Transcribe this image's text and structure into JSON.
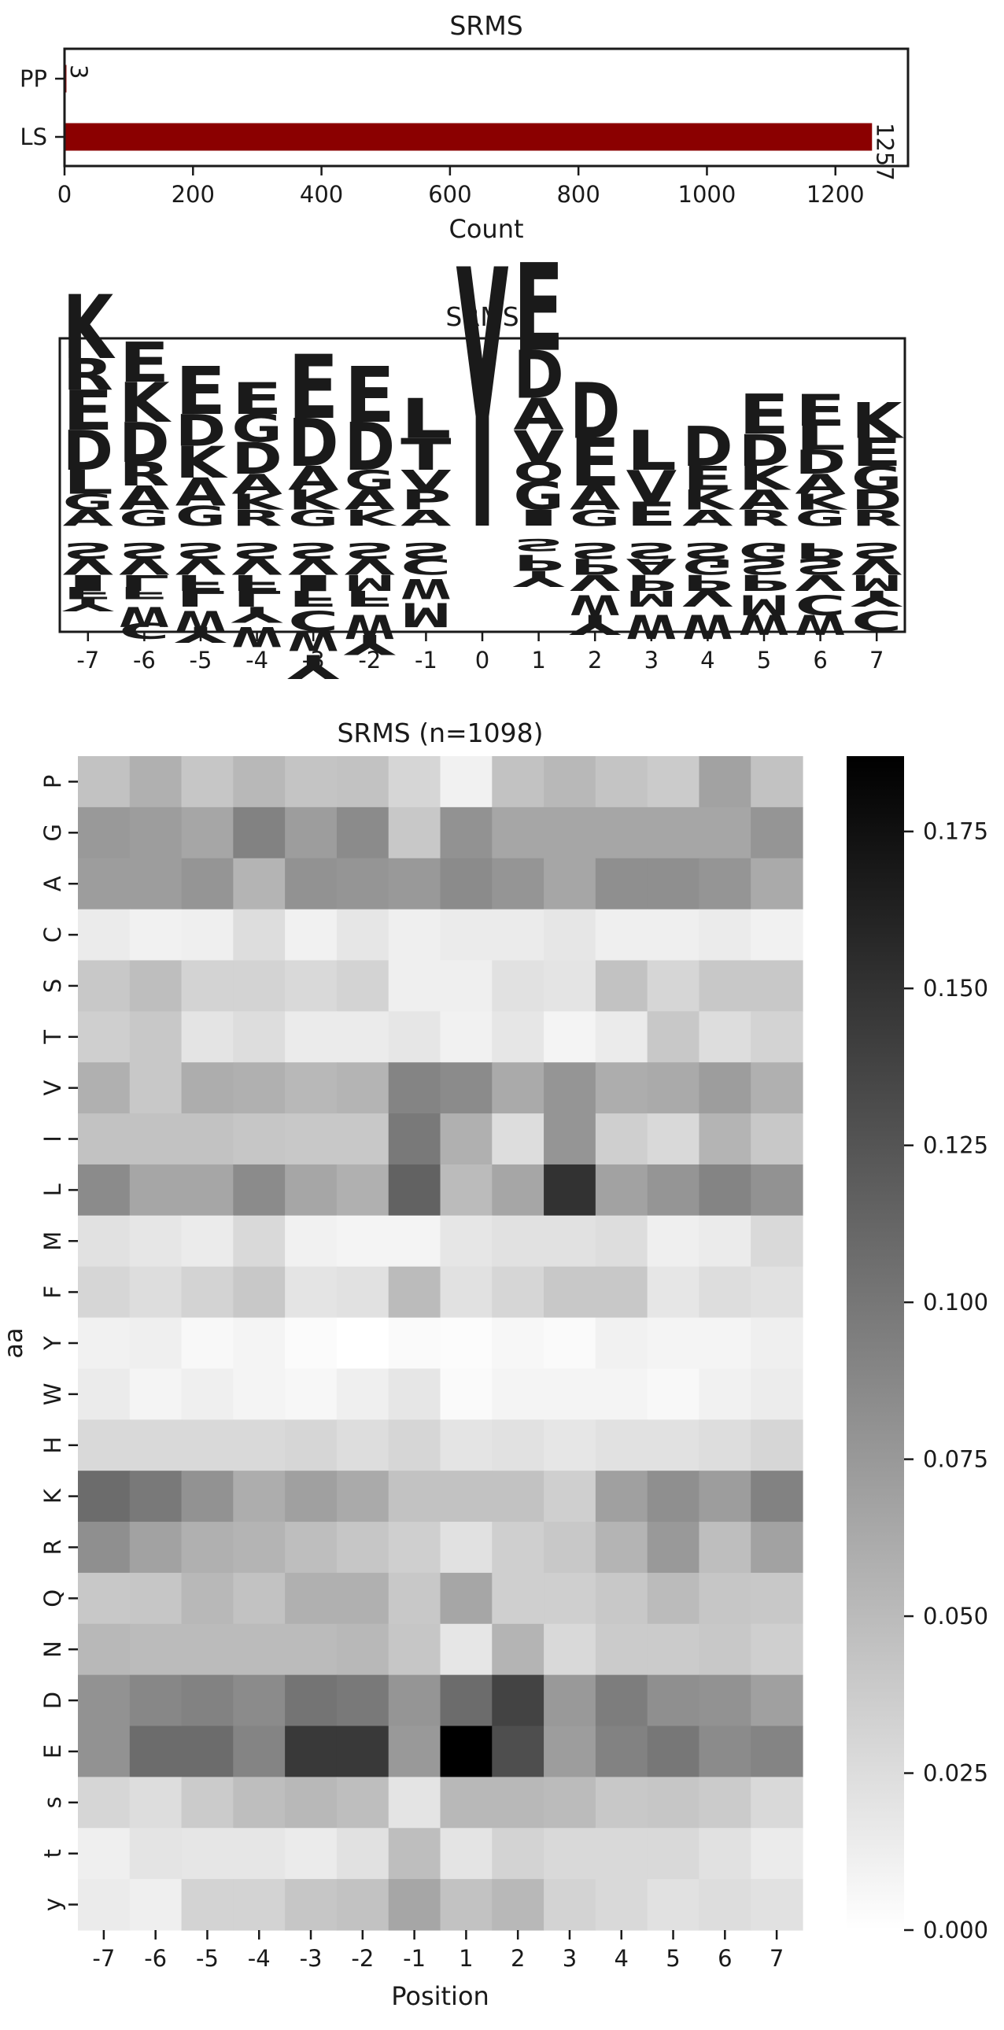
{
  "chart_data": [
    {
      "type": "bar",
      "orientation": "horizontal",
      "title": "SRMS",
      "categories": [
        "PP",
        "LS"
      ],
      "values": [
        3,
        1257
      ],
      "value_labels": [
        "3",
        "1257"
      ],
      "xlabel": "Count",
      "ylabel": "",
      "xlim": [
        0,
        1313
      ],
      "xticks": [
        0,
        200,
        400,
        600,
        800,
        1000,
        1200
      ],
      "color": "#8b0000"
    },
    {
      "type": "sequence_logo",
      "title": "SRMS",
      "positions": [
        -7,
        -6,
        -5,
        -4,
        -3,
        -2,
        -1,
        0,
        1,
        2,
        3,
        4,
        5,
        6,
        7
      ],
      "position_labels": [
        "-7",
        "-6",
        "-5",
        "-4",
        "-3",
        "-2",
        "-1",
        "0",
        "1",
        "2",
        "3",
        "4",
        "5",
        "6",
        "7"
      ],
      "colors": {
        "acidic": "#dc143c",
        "basic": "#0000cd",
        "hydrophobic": "#d4a017",
        "polar": "#008000",
        "aromatic": "#8b3a0f",
        "phospho": "#8b008b",
        "other": "#000000"
      },
      "columns": [
        {
          "pos": -7,
          "up": [
            [
              "K",
              0.16
            ],
            [
              "R",
              0.08
            ],
            [
              "E",
              0.1
            ],
            [
              "D",
              0.1
            ],
            [
              "L",
              0.06
            ],
            [
              "G",
              0.04
            ],
            [
              "A",
              0.04
            ]
          ],
          "down": [
            [
              "S",
              0.04
            ],
            [
              "V",
              0.04
            ],
            [
              "I",
              0.04
            ],
            [
              "F",
              0.03
            ],
            [
              "Y",
              0.03
            ]
          ]
        },
        {
          "pos": -6,
          "up": [
            [
              "E",
              0.1
            ],
            [
              "K",
              0.1
            ],
            [
              "D",
              0.1
            ],
            [
              "R",
              0.06
            ],
            [
              "A",
              0.06
            ],
            [
              "G",
              0.04
            ]
          ],
          "down": [
            [
              "S",
              0.04
            ],
            [
              "V",
              0.04
            ],
            [
              "L",
              0.04
            ],
            [
              "F",
              0.03
            ],
            [
              "W",
              0.05
            ],
            [
              "C",
              0.04
            ]
          ]
        },
        {
          "pos": -5,
          "up": [
            [
              "E",
              0.12
            ],
            [
              "D",
              0.08
            ],
            [
              "K",
              0.08
            ],
            [
              "A",
              0.07
            ],
            [
              "G",
              0.05
            ]
          ],
          "down": [
            [
              "S",
              0.04
            ],
            [
              "V",
              0.04
            ],
            [
              "F",
              0.04
            ],
            [
              "L",
              0.04
            ],
            [
              "W",
              0.05
            ],
            [
              "Y",
              0.04
            ]
          ]
        },
        {
          "pos": -4,
          "up": [
            [
              "E",
              0.08
            ],
            [
              "G",
              0.07
            ],
            [
              "D",
              0.08
            ],
            [
              "A",
              0.05
            ],
            [
              "K",
              0.04
            ],
            [
              "R",
              0.04
            ]
          ],
          "down": [
            [
              "S",
              0.04
            ],
            [
              "V",
              0.04
            ],
            [
              "F",
              0.04
            ],
            [
              "L",
              0.04
            ],
            [
              "Y",
              0.04
            ],
            [
              "W",
              0.05
            ]
          ]
        },
        {
          "pos": -3,
          "up": [
            [
              "E",
              0.16
            ],
            [
              "D",
              0.12
            ],
            [
              "A",
              0.06
            ],
            [
              "K",
              0.05
            ],
            [
              "G",
              0.04
            ]
          ],
          "down": [
            [
              "S",
              0.04
            ],
            [
              "V",
              0.04
            ],
            [
              "I",
              0.04
            ],
            [
              "F",
              0.04
            ],
            [
              "C",
              0.05
            ],
            [
              "W",
              0.05
            ],
            [
              "Y",
              0.06
            ]
          ]
        },
        {
          "pos": -2,
          "up": [
            [
              "E",
              0.14
            ],
            [
              "D",
              0.12
            ],
            [
              "G",
              0.05
            ],
            [
              "A",
              0.05
            ],
            [
              "K",
              0.04
            ]
          ],
          "down": [
            [
              "S",
              0.04
            ],
            [
              "V",
              0.04
            ],
            [
              "M",
              0.04
            ],
            [
              "F",
              0.04
            ],
            [
              "W",
              0.06
            ],
            [
              "Y",
              0.05
            ]
          ]
        },
        {
          "pos": -1,
          "up": [
            [
              "L",
              0.1
            ],
            [
              "T",
              0.08
            ],
            [
              "V",
              0.05
            ],
            [
              "P",
              0.05
            ],
            [
              "A",
              0.04
            ]
          ],
          "down": [
            [
              "S",
              0.04
            ],
            [
              "C",
              0.04
            ],
            [
              "W",
              0.05
            ],
            [
              "M",
              0.06
            ]
          ]
        },
        {
          "pos": 0,
          "up": [
            [
              "Y",
              0.65
            ]
          ],
          "down": []
        },
        {
          "pos": 1,
          "up": [
            [
              "E",
              0.22
            ],
            [
              "D",
              0.12
            ],
            [
              "A",
              0.08
            ],
            [
              "V",
              0.08
            ],
            [
              "Q",
              0.05
            ],
            [
              "G",
              0.07
            ],
            [
              "I",
              0.04
            ]
          ],
          "down": [
            [
              "S",
              0.03
            ],
            [
              "P",
              0.04
            ],
            [
              "Y",
              0.04
            ]
          ]
        },
        {
          "pos": 2,
          "up": [
            [
              "D",
              0.14
            ],
            [
              "E",
              0.12
            ],
            [
              "A",
              0.06
            ],
            [
              "G",
              0.04
            ]
          ],
          "down": [
            [
              "S",
              0.04
            ],
            [
              "P",
              0.04
            ],
            [
              "V",
              0.04
            ],
            [
              "W",
              0.05
            ],
            [
              "Y",
              0.05
            ]
          ]
        },
        {
          "pos": 3,
          "up": [
            [
              "L",
              0.1
            ],
            [
              "V",
              0.08
            ],
            [
              "E",
              0.06
            ]
          ],
          "down": [
            [
              "S",
              0.04
            ],
            [
              "A",
              0.04
            ],
            [
              "P",
              0.04
            ],
            [
              "M",
              0.04
            ],
            [
              "W",
              0.06
            ]
          ]
        },
        {
          "pos": 4,
          "up": [
            [
              "D",
              0.1
            ],
            [
              "E",
              0.06
            ],
            [
              "K",
              0.05
            ],
            [
              "A",
              0.04
            ]
          ],
          "down": [
            [
              "S",
              0.04
            ],
            [
              "G",
              0.04
            ],
            [
              "P",
              0.04
            ],
            [
              "V",
              0.04
            ],
            [
              "W",
              0.06
            ]
          ]
        },
        {
          "pos": 5,
          "up": [
            [
              "E",
              0.1
            ],
            [
              "D",
              0.08
            ],
            [
              "K",
              0.06
            ],
            [
              "A",
              0.05
            ],
            [
              "R",
              0.04
            ]
          ],
          "down": [
            [
              "G",
              0.04
            ],
            [
              "S",
              0.04
            ],
            [
              "P",
              0.04
            ],
            [
              "M",
              0.05
            ],
            [
              "W",
              0.05
            ]
          ]
        },
        {
          "pos": 6,
          "up": [
            [
              "E",
              0.08
            ],
            [
              "L",
              0.06
            ],
            [
              "D",
              0.06
            ],
            [
              "A",
              0.05
            ],
            [
              "K",
              0.04
            ],
            [
              "G",
              0.04
            ]
          ],
          "down": [
            [
              "P",
              0.04
            ],
            [
              "S",
              0.04
            ],
            [
              "V",
              0.04
            ],
            [
              "C",
              0.05
            ],
            [
              "W",
              0.05
            ]
          ]
        },
        {
          "pos": 7,
          "up": [
            [
              "K",
              0.09
            ],
            [
              "E",
              0.07
            ],
            [
              "G",
              0.06
            ],
            [
              "D",
              0.05
            ],
            [
              "R",
              0.04
            ]
          ],
          "down": [
            [
              "S",
              0.04
            ],
            [
              "V",
              0.04
            ],
            [
              "M",
              0.04
            ],
            [
              "Y",
              0.04
            ],
            [
              "C",
              0.05
            ]
          ]
        }
      ]
    },
    {
      "type": "heatmap",
      "title": "SRMS (n=1098)",
      "xlabel": "Position",
      "ylabel": "aa",
      "x": [
        "-7",
        "-6",
        "-5",
        "-4",
        "-3",
        "-2",
        "-1",
        "1",
        "2",
        "3",
        "4",
        "5",
        "6",
        "7"
      ],
      "y": [
        "P",
        "G",
        "A",
        "C",
        "S",
        "T",
        "V",
        "I",
        "L",
        "M",
        "F",
        "Y",
        "W",
        "H",
        "K",
        "R",
        "Q",
        "N",
        "D",
        "E",
        "s",
        "t",
        "y"
      ],
      "vmin": 0,
      "vmax": 0.187,
      "colorbar_ticks": [
        "0.000",
        "0.025",
        "0.050",
        "0.075",
        "0.100",
        "0.125",
        "0.150",
        "0.175"
      ],
      "colorbar_tick_values": [
        0,
        0.025,
        0.05,
        0.075,
        0.1,
        0.125,
        0.15,
        0.175
      ],
      "values": [
        [
          0.045,
          0.058,
          0.042,
          0.052,
          0.043,
          0.045,
          0.03,
          0.01,
          0.045,
          0.052,
          0.043,
          0.038,
          0.068,
          0.045
        ],
        [
          0.075,
          0.072,
          0.065,
          0.092,
          0.072,
          0.085,
          0.04,
          0.08,
          0.065,
          0.065,
          0.065,
          0.065,
          0.065,
          0.078
        ],
        [
          0.072,
          0.072,
          0.078,
          0.055,
          0.08,
          0.078,
          0.075,
          0.085,
          0.078,
          0.065,
          0.082,
          0.082,
          0.078,
          0.062
        ],
        [
          0.015,
          0.01,
          0.012,
          0.025,
          0.01,
          0.018,
          0.012,
          0.015,
          0.015,
          0.018,
          0.012,
          0.012,
          0.015,
          0.01
        ],
        [
          0.04,
          0.048,
          0.032,
          0.032,
          0.028,
          0.032,
          0.012,
          0.012,
          0.022,
          0.02,
          0.045,
          0.03,
          0.04,
          0.04
        ],
        [
          0.035,
          0.04,
          0.02,
          0.025,
          0.015,
          0.015,
          0.018,
          0.01,
          0.018,
          0.008,
          0.015,
          0.04,
          0.025,
          0.032
        ],
        [
          0.058,
          0.04,
          0.06,
          0.058,
          0.052,
          0.055,
          0.09,
          0.085,
          0.062,
          0.078,
          0.06,
          0.062,
          0.072,
          0.058
        ],
        [
          0.045,
          0.045,
          0.045,
          0.042,
          0.04,
          0.04,
          0.098,
          0.058,
          0.025,
          0.078,
          0.035,
          0.028,
          0.055,
          0.04
        ],
        [
          0.085,
          0.065,
          0.065,
          0.085,
          0.065,
          0.058,
          0.115,
          0.05,
          0.065,
          0.15,
          0.068,
          0.078,
          0.09,
          0.08
        ],
        [
          0.022,
          0.018,
          0.015,
          0.028,
          0.01,
          0.008,
          0.008,
          0.018,
          0.022,
          0.022,
          0.025,
          0.012,
          0.015,
          0.028
        ],
        [
          0.03,
          0.025,
          0.032,
          0.04,
          0.02,
          0.022,
          0.05,
          0.022,
          0.03,
          0.04,
          0.04,
          0.018,
          0.025,
          0.022
        ],
        [
          0.01,
          0.012,
          0.005,
          0.008,
          0.003,
          0.0,
          0.004,
          0.002,
          0.006,
          0.004,
          0.01,
          0.008,
          0.008,
          0.012
        ],
        [
          0.015,
          0.008,
          0.012,
          0.008,
          0.006,
          0.012,
          0.018,
          0.004,
          0.008,
          0.008,
          0.008,
          0.005,
          0.01,
          0.014
        ],
        [
          0.028,
          0.028,
          0.028,
          0.028,
          0.03,
          0.025,
          0.03,
          0.02,
          0.022,
          0.018,
          0.022,
          0.022,
          0.025,
          0.03
        ],
        [
          0.108,
          0.098,
          0.08,
          0.06,
          0.07,
          0.062,
          0.045,
          0.045,
          0.045,
          0.035,
          0.07,
          0.082,
          0.072,
          0.092
        ],
        [
          0.082,
          0.068,
          0.058,
          0.055,
          0.048,
          0.042,
          0.035,
          0.022,
          0.035,
          0.04,
          0.055,
          0.075,
          0.048,
          0.068
        ],
        [
          0.04,
          0.042,
          0.052,
          0.045,
          0.058,
          0.058,
          0.04,
          0.065,
          0.035,
          0.035,
          0.04,
          0.05,
          0.042,
          0.04
        ],
        [
          0.052,
          0.05,
          0.05,
          0.05,
          0.05,
          0.052,
          0.042,
          0.018,
          0.055,
          0.028,
          0.038,
          0.038,
          0.04,
          0.035
        ],
        [
          0.08,
          0.088,
          0.092,
          0.085,
          0.102,
          0.098,
          0.078,
          0.108,
          0.138,
          0.075,
          0.095,
          0.082,
          0.08,
          0.07
        ],
        [
          0.08,
          0.108,
          0.108,
          0.09,
          0.145,
          0.145,
          0.075,
          0.187,
          0.13,
          0.072,
          0.092,
          0.1,
          0.085,
          0.09
        ],
        [
          0.03,
          0.025,
          0.038,
          0.048,
          0.052,
          0.048,
          0.02,
          0.052,
          0.052,
          0.05,
          0.04,
          0.042,
          0.038,
          0.028
        ],
        [
          0.012,
          0.02,
          0.018,
          0.018,
          0.015,
          0.022,
          0.048,
          0.02,
          0.032,
          0.028,
          0.028,
          0.028,
          0.022,
          0.015
        ],
        [
          0.015,
          0.012,
          0.032,
          0.032,
          0.042,
          0.045,
          0.065,
          0.045,
          0.052,
          0.032,
          0.028,
          0.022,
          0.025,
          0.022
        ]
      ]
    }
  ]
}
